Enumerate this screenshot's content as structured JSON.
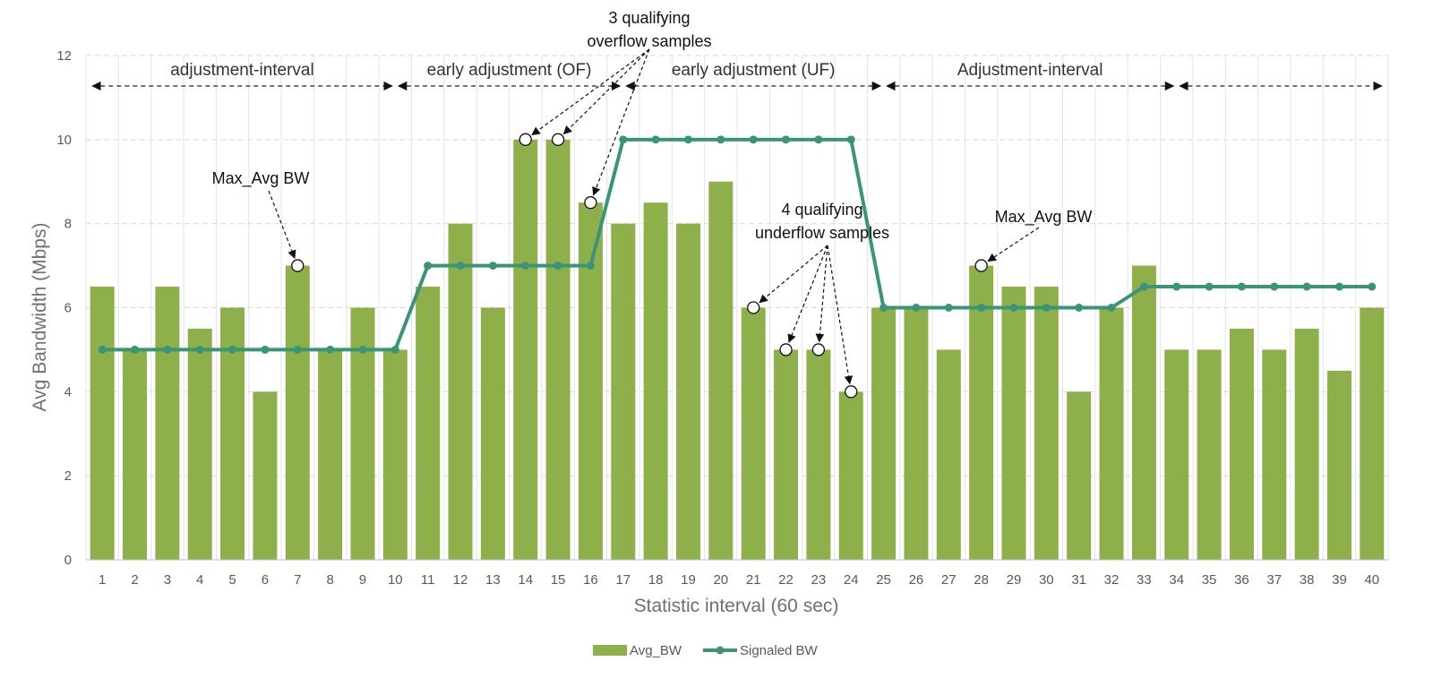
{
  "chart_data": {
    "type": "bar",
    "x": [
      1,
      2,
      3,
      4,
      5,
      6,
      7,
      8,
      9,
      10,
      11,
      12,
      13,
      14,
      15,
      16,
      17,
      18,
      19,
      20,
      21,
      22,
      23,
      24,
      25,
      26,
      27,
      28,
      29,
      30,
      31,
      32,
      33,
      34,
      35,
      36,
      37,
      38,
      39,
      40
    ],
    "series": [
      {
        "name": "Avg_BW",
        "type": "bar",
        "color": "#8db04a",
        "values": [
          6.5,
          5,
          6.5,
          5.5,
          6,
          4,
          7,
          5,
          6,
          5,
          6.5,
          8,
          6,
          10,
          10,
          8.5,
          8,
          8.5,
          8,
          9,
          6,
          5,
          5,
          4,
          6,
          6,
          5,
          7,
          6.5,
          6.5,
          4,
          6,
          7,
          5,
          5,
          5.5,
          5,
          5.5,
          4.5,
          6
        ]
      },
      {
        "name": "Signaled BW",
        "type": "line",
        "color": "#3a9577",
        "values": [
          5,
          5,
          5,
          5,
          5,
          5,
          5,
          5,
          5,
          5,
          7,
          7,
          7,
          7,
          7,
          7,
          10,
          10,
          10,
          10,
          10,
          10,
          10,
          10,
          6,
          6,
          6,
          6,
          6,
          6,
          6,
          6,
          6.5,
          6.5,
          6.5,
          6.5,
          6.5,
          6.5,
          6.5,
          6.5
        ]
      }
    ],
    "xlabel": "Statistic interval (60 sec)",
    "ylabel": "Avg Bandwidth (Mbps)",
    "ylim": [
      0,
      12
    ],
    "yticks": [
      0,
      2,
      4,
      6,
      8,
      10,
      12
    ],
    "grid": true,
    "legend": "bottom-center",
    "regions": [
      {
        "label": "adjustment-interval",
        "x_start": 0.7,
        "x_end": 9.9
      },
      {
        "label": "early adjustment (OF)",
        "x_start": 10.1,
        "x_end": 16.9
      },
      {
        "label": "early adjustment (UF)",
        "x_start": 17.1,
        "x_end": 24.9
      },
      {
        "label": "Adjustment-interval",
        "x_start": 25.1,
        "x_end": 33.9
      },
      {
        "label": "",
        "x_start": 34.1,
        "x_end": 40.3
      }
    ],
    "annotations": [
      {
        "text": [
          "Max_Avg BW"
        ],
        "targets": [
          [
            7,
            7
          ]
        ]
      },
      {
        "text": [
          "3 qualifying",
          "overflow samples"
        ],
        "targets": [
          [
            14,
            10
          ],
          [
            15,
            10
          ],
          [
            16,
            8.5
          ]
        ]
      },
      {
        "text": [
          "4 qualifying",
          "underflow samples"
        ],
        "targets": [
          [
            21,
            6
          ],
          [
            22,
            5
          ],
          [
            23,
            5
          ],
          [
            24,
            4
          ]
        ]
      },
      {
        "text": [
          "Max_Avg BW"
        ],
        "targets": [
          [
            28,
            7
          ]
        ]
      }
    ]
  }
}
